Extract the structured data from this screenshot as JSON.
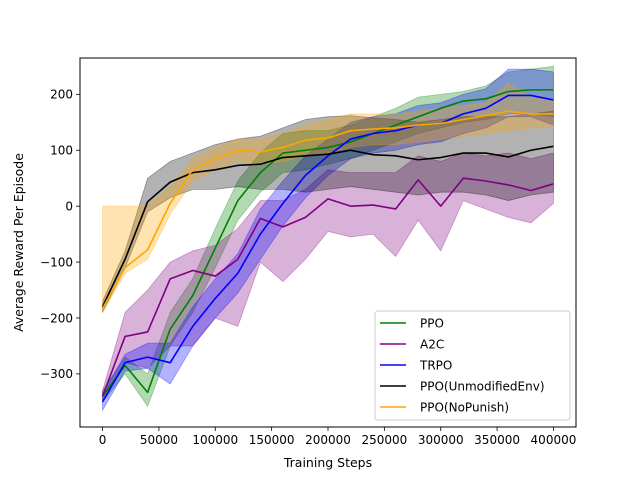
{
  "chart_data": {
    "type": "line",
    "title": "",
    "xlabel": "Training Steps",
    "ylabel": "Average Reward Per Episode",
    "xlim": [
      -20000,
      420000
    ],
    "ylim": [
      -395,
      265
    ],
    "xticks": [
      0,
      50000,
      100000,
      150000,
      200000,
      250000,
      300000,
      350000,
      400000
    ],
    "yticks": [
      -300,
      -200,
      -100,
      0,
      100,
      200
    ],
    "grid": false,
    "legend_position": "lower-right",
    "x": [
      0,
      20000,
      40000,
      60000,
      80000,
      100000,
      120000,
      140000,
      160000,
      180000,
      200000,
      220000,
      240000,
      260000,
      280000,
      300000,
      320000,
      340000,
      360000,
      380000,
      400000
    ],
    "series": [
      {
        "name": "PPO",
        "color": "#008000",
        "values": [
          -340,
          -285,
          -333,
          -220,
          -160,
          -75,
          10,
          60,
          95,
          100,
          105,
          115,
          130,
          145,
          160,
          175,
          188,
          192,
          205,
          208,
          208
        ],
        "lower": [
          -350,
          -300,
          -358,
          -250,
          -190,
          -110,
          -25,
          25,
          60,
          65,
          75,
          85,
          100,
          115,
          130,
          140,
          150,
          155,
          165,
          165,
          160
        ],
        "upper": [
          -330,
          -270,
          -300,
          -190,
          -130,
          -40,
          45,
          95,
          130,
          135,
          135,
          145,
          160,
          175,
          195,
          200,
          205,
          215,
          240,
          245,
          250
        ]
      },
      {
        "name": "A2C",
        "color": "#800080",
        "values": [
          -340,
          -233,
          -225,
          -130,
          -115,
          -125,
          -95,
          -22,
          -37,
          -20,
          13,
          0,
          2,
          -5,
          47,
          0,
          50,
          45,
          38,
          28,
          40
        ],
        "lower": [
          -350,
          -280,
          -290,
          -250,
          -250,
          -200,
          -215,
          -100,
          -135,
          -95,
          -45,
          -55,
          -50,
          -90,
          -25,
          -80,
          10,
          -5,
          -20,
          -30,
          5
        ],
        "upper": [
          -330,
          -190,
          -150,
          -100,
          -80,
          -70,
          -40,
          10,
          10,
          30,
          65,
          60,
          60,
          60,
          90,
          80,
          95,
          90,
          95,
          85,
          95
        ]
      },
      {
        "name": "TRPO",
        "color": "#0000ff",
        "values": [
          -350,
          -280,
          -270,
          -280,
          -215,
          -165,
          -120,
          -50,
          5,
          55,
          90,
          120,
          130,
          135,
          145,
          148,
          165,
          175,
          198,
          198,
          190
        ],
        "lower": [
          -365,
          -295,
          -290,
          -318,
          -250,
          -200,
          -155,
          -95,
          -35,
          15,
          55,
          85,
          95,
          100,
          110,
          115,
          130,
          140,
          160,
          160,
          145
        ],
        "upper": [
          -335,
          -265,
          -245,
          -245,
          -180,
          -130,
          -85,
          -5,
          45,
          90,
          120,
          150,
          160,
          165,
          180,
          185,
          200,
          210,
          245,
          245,
          240
        ]
      },
      {
        "name": "PPO(UnmodifiedEnv)",
        "color": "#000000",
        "values": [
          -180,
          -95,
          8,
          43,
          60,
          65,
          73,
          75,
          87,
          90,
          93,
          100,
          92,
          90,
          83,
          87,
          95,
          95,
          88,
          100,
          107
        ],
        "lower": [
          -190,
          -110,
          -10,
          15,
          30,
          30,
          35,
          30,
          30,
          25,
          30,
          35,
          30,
          25,
          20,
          25,
          25,
          20,
          10,
          20,
          25
        ],
        "upper": [
          -170,
          -80,
          50,
          80,
          95,
          110,
          120,
          125,
          140,
          155,
          160,
          162,
          158,
          155,
          150,
          155,
          160,
          160,
          160,
          165,
          170
        ]
      },
      {
        "name": "PPO(NoPunish)",
        "color": "#ffa500",
        "values": [
          -183,
          -110,
          -78,
          5,
          65,
          85,
          100,
          97,
          105,
          118,
          122,
          135,
          138,
          140,
          145,
          148,
          155,
          162,
          170,
          165,
          165
        ],
        "lower": [
          -190,
          -120,
          -95,
          -15,
          45,
          65,
          80,
          75,
          80,
          90,
          95,
          105,
          110,
          110,
          115,
          120,
          125,
          130,
          135,
          140,
          140
        ],
        "upper": [
          0,
          0,
          0,
          35,
          85,
          105,
          120,
          120,
          130,
          145,
          155,
          165,
          165,
          165,
          170,
          175,
          180,
          185,
          220,
          195,
          190
        ]
      }
    ]
  }
}
